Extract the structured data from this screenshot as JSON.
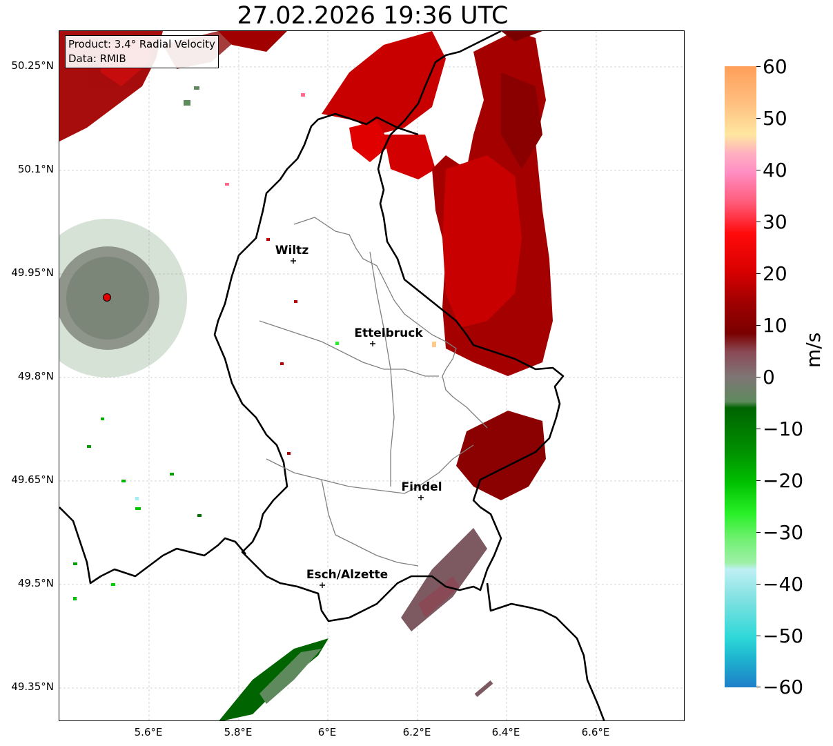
{
  "title": "27.02.2026 19:36 UTC",
  "info": {
    "product": "Product: 3.4° Radial Velocity",
    "data": "Data: RMIB"
  },
  "y_axis": {
    "ticks": [
      "50.25°N",
      "50.1°N",
      "49.95°N",
      "49.8°N",
      "49.65°N",
      "49.5°N",
      "49.35°N"
    ]
  },
  "x_axis": {
    "ticks": [
      "5.6°E",
      "5.8°E",
      "6°E",
      "6.2°E",
      "6.4°E",
      "6.6°E"
    ]
  },
  "cities": [
    {
      "name": "Wiltz"
    },
    {
      "name": "Ettelbruck"
    },
    {
      "name": "Findel"
    },
    {
      "name": "Esch/Alzette"
    }
  ],
  "colorbar": {
    "unit": "m/s",
    "ticks": [
      "60",
      "50",
      "40",
      "30",
      "20",
      "10",
      "0",
      "−10",
      "−20",
      "−30",
      "−40",
      "−50",
      "−60"
    ],
    "colors": {
      "60": "#ff9f5a",
      "50": "#ffc98a",
      "45": "#ffe7a0",
      "40": "#ff8fc4",
      "30": "#ff4b6a",
      "25": "#ff0a0a",
      "20": "#d90000",
      "10": "#7a0000",
      "5": "#8a4a55",
      "0": "#7f7575",
      "-5": "#5e8a5e",
      "-10": "#006400",
      "-20": "#00b000",
      "-30": "#28f028",
      "-35": "#9ff0a8",
      "-40": "#bff0f5",
      "-50": "#2ed8d8",
      "-60": "#1e7fc8"
    }
  }
}
